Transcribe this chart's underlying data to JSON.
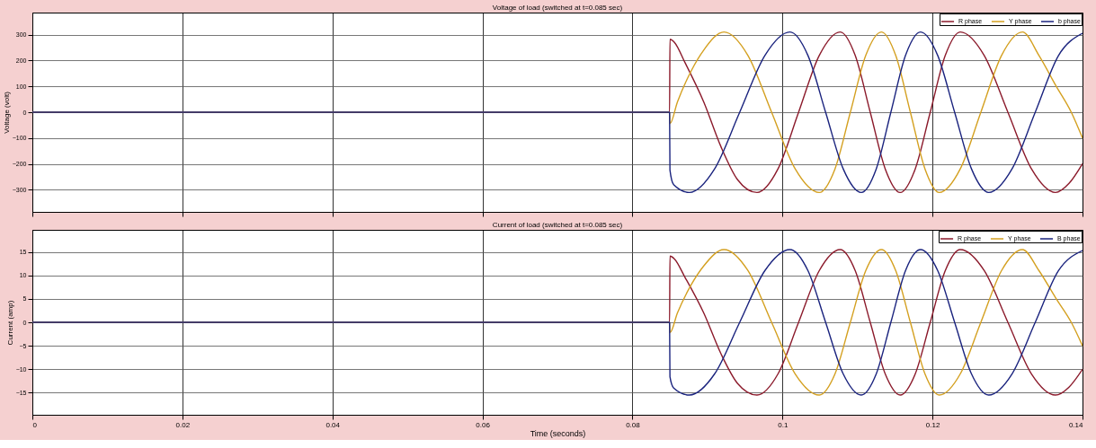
{
  "chart_data": [
    {
      "type": "line",
      "title": "Voltage of load (switched at t=0.085 sec)",
      "ylabel": "Voltage (volt)",
      "xlim": [
        0,
        0.14
      ],
      "ylim": [
        -385,
        385
      ],
      "xticks": [
        0,
        0.02,
        0.04,
        0.06,
        0.08,
        0.1,
        0.12,
        0.14
      ],
      "yticks": [
        -300,
        -200,
        -100,
        0,
        100,
        200,
        300
      ],
      "grid": true,
      "legend": "top right",
      "tick_labels": "y",
      "series": [
        {
          "name": "R phase",
          "color": "#8b1a2b",
          "x": [
            0,
            0.08495,
            0.085,
            0.0856,
            0.087,
            0.0895,
            0.0918,
            0.094,
            0.0966,
            0.0994,
            0.10215,
            0.1049,
            0.1077,
            0.1097,
            0.1117,
            0.1137,
            0.1157,
            0.1177,
            0.1197,
            0.1217,
            0.1237,
            0.1269,
            0.13005,
            0.1332,
            0.1364,
            0.1382,
            0.14
          ],
          "values": [
            0,
            0,
            282,
            270,
            192,
            40,
            -133,
            -260,
            -310,
            -219,
            0,
            219,
            310,
            219,
            0,
            -219,
            -310,
            -219,
            0,
            219,
            310,
            219,
            0,
            -219,
            -310,
            -275,
            -199
          ]
        },
        {
          "name": "Y phase",
          "color": "#d4a020",
          "x": [
            0,
            0.08495,
            0.085,
            0.086,
            0.0878,
            0.0895,
            0.0922,
            0.0954,
            0.09855,
            0.1017,
            0.1049,
            0.107,
            0.10905,
            0.1111,
            0.1132,
            0.1151,
            0.11705,
            0.119,
            0.1209,
            0.1237,
            0.12645,
            0.1292,
            0.132,
            0.1342,
            0.1365,
            0.1385,
            0.14
          ],
          "values": [
            0,
            0,
            -44,
            40,
            158,
            240,
            310,
            219,
            0,
            -219,
            -310,
            -219,
            0,
            219,
            310,
            219,
            0,
            -219,
            -310,
            -219,
            0,
            219,
            310,
            219,
            100,
            0,
            -100
          ]
        },
        {
          "name": "b phase",
          "color": "#1a237e",
          "x": [
            0,
            0.08495,
            0.085,
            0.0855,
            0.0876,
            0.09095,
            0.0943,
            0.09765,
            0.101,
            0.1034,
            0.10575,
            0.1081,
            0.1105,
            0.1125,
            0.11445,
            0.1164,
            0.1184,
            0.1207,
            0.12295,
            0.1252,
            0.1275,
            0.1306,
            0.1337,
            0.1368,
            0.14
          ],
          "values": [
            0,
            0,
            -223,
            -280,
            -310,
            -219,
            0,
            219,
            310,
            219,
            0,
            -219,
            -310,
            -219,
            0,
            219,
            310,
            219,
            0,
            -219,
            -310,
            -219,
            0,
            219,
            305
          ]
        }
      ]
    },
    {
      "type": "line",
      "title": "Current of load (switched at t=0.085 sec)",
      "xlabel": "Time (seconds)",
      "ylabel": "Current (amp)",
      "xlim": [
        0,
        0.14
      ],
      "ylim": [
        -19.7,
        19.7
      ],
      "xticks": [
        0,
        0.02,
        0.04,
        0.06,
        0.08,
        0.1,
        0.12,
        0.14
      ],
      "yticks": [
        -15,
        -10,
        -5,
        0,
        5,
        10,
        15
      ],
      "grid": true,
      "legend": "top right",
      "series": [
        {
          "name": "R phase",
          "color": "#8b1a2b",
          "x": [
            0,
            0.08495,
            0.085,
            0.0856,
            0.087,
            0.0895,
            0.0918,
            0.094,
            0.0966,
            0.0994,
            0.10215,
            0.1049,
            0.1077,
            0.1097,
            0.1117,
            0.1137,
            0.1157,
            0.1177,
            0.1197,
            0.1217,
            0.1237,
            0.1269,
            0.13005,
            0.1332,
            0.1364,
            0.1382,
            0.14
          ],
          "values": [
            0,
            0,
            14.1,
            13.5,
            9.6,
            2,
            -6.7,
            -13,
            -15.5,
            -11,
            0,
            11,
            15.5,
            11,
            0,
            -11,
            -15.5,
            -11,
            0,
            11,
            15.5,
            11,
            0,
            -11,
            -15.5,
            -13.8,
            -10
          ]
        },
        {
          "name": "Y phase",
          "color": "#d4a020",
          "x": [
            0,
            0.08495,
            0.085,
            0.086,
            0.0878,
            0.0895,
            0.0922,
            0.0954,
            0.09855,
            0.1017,
            0.1049,
            0.107,
            0.10905,
            0.1111,
            0.1132,
            0.1151,
            0.11705,
            0.119,
            0.1209,
            0.1237,
            0.12645,
            0.1292,
            0.132,
            0.1342,
            0.1365,
            0.1385,
            0.14
          ],
          "values": [
            0,
            0,
            -2.2,
            2,
            7.9,
            12,
            15.5,
            11,
            0,
            -11,
            -15.5,
            -11,
            0,
            11,
            15.5,
            11,
            0,
            -11,
            -15.5,
            -11,
            0,
            11,
            15.5,
            11,
            5,
            0,
            -5
          ]
        },
        {
          "name": "B phase",
          "color": "#1a237e",
          "x": [
            0,
            0.08495,
            0.085,
            0.0855,
            0.0876,
            0.09095,
            0.0943,
            0.09765,
            0.101,
            0.1034,
            0.10575,
            0.1081,
            0.1105,
            0.1125,
            0.11445,
            0.1164,
            0.1184,
            0.1207,
            0.12295,
            0.1252,
            0.1275,
            0.1306,
            0.1337,
            0.1368,
            0.14
          ],
          "values": [
            0,
            0,
            -11.6,
            -14,
            -15.5,
            -11,
            0,
            11,
            15.5,
            11,
            0,
            -11,
            -15.5,
            -11,
            0,
            11,
            15.5,
            11,
            0,
            -11,
            -15.5,
            -11,
            0,
            11,
            15.3
          ]
        }
      ]
    }
  ]
}
